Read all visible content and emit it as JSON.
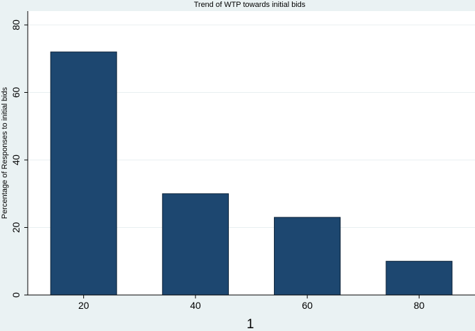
{
  "chart_data": {
    "type": "bar",
    "title": "Trend of WTP towards initial bids",
    "xlabel": "1",
    "ylabel": "Percentage of Responses to initial bids",
    "categories": [
      "20",
      "40",
      "60",
      "80"
    ],
    "values": [
      72,
      30,
      23,
      10
    ],
    "ylim": [
      0,
      80
    ],
    "yticks": [
      "0",
      "20",
      "40",
      "60",
      "80"
    ],
    "grid": "horizontal",
    "legend": "none",
    "colors": {
      "bar": "#1d4770",
      "bar_edge": "#0c2238",
      "plot_background": "#ffffff",
      "page_background": "#eaf2f3",
      "gridline": "#e8eff0"
    }
  }
}
